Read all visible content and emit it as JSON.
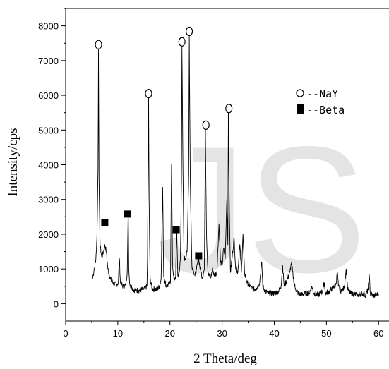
{
  "chart_data": {
    "type": "line",
    "xlabel": "2 Theta/deg",
    "ylabel": "Intensity/cps",
    "xlim": [
      0,
      62
    ],
    "ylim": [
      -500,
      8500
    ],
    "x_ticks": [
      0,
      10,
      20,
      30,
      40,
      50,
      60
    ],
    "y_ticks": [
      0,
      1000,
      2000,
      3000,
      4000,
      5000,
      6000,
      7000,
      8000
    ],
    "grid": false,
    "legend_position": "top-right",
    "watermark": "JS",
    "series": [
      {
        "type": "line",
        "color": "#000000",
        "points": [
          [
            5.0,
            700
          ],
          [
            5.4,
            900
          ],
          [
            5.8,
            1300
          ],
          [
            6.0,
            1900
          ],
          [
            6.2,
            3800
          ],
          [
            6.3,
            7350
          ],
          [
            6.4,
            3500
          ],
          [
            6.6,
            1700
          ],
          [
            6.9,
            1350
          ],
          [
            7.2,
            1450
          ],
          [
            7.5,
            1700
          ],
          [
            7.8,
            1500
          ],
          [
            8.1,
            1000
          ],
          [
            8.6,
            700
          ],
          [
            9.3,
            560
          ],
          [
            9.8,
            560
          ],
          [
            10.1,
            600
          ],
          [
            10.3,
            1300
          ],
          [
            10.5,
            600
          ],
          [
            11.0,
            500
          ],
          [
            11.5,
            520
          ],
          [
            11.8,
            900
          ],
          [
            12.0,
            2700
          ],
          [
            12.1,
            1000
          ],
          [
            12.3,
            560
          ],
          [
            13.0,
            400
          ],
          [
            14.0,
            380
          ],
          [
            15.0,
            420
          ],
          [
            15.6,
            500
          ],
          [
            15.7,
            1300
          ],
          [
            15.8,
            3300
          ],
          [
            15.9,
            5950
          ],
          [
            16.0,
            3000
          ],
          [
            16.2,
            700
          ],
          [
            16.6,
            420
          ],
          [
            17.2,
            420
          ],
          [
            17.5,
            400
          ],
          [
            18.0,
            500
          ],
          [
            18.3,
            700
          ],
          [
            18.6,
            3350
          ],
          [
            18.8,
            800
          ],
          [
            19.3,
            500
          ],
          [
            19.8,
            550
          ],
          [
            20.1,
            650
          ],
          [
            20.3,
            4000
          ],
          [
            20.5,
            1100
          ],
          [
            20.8,
            650
          ],
          [
            21.1,
            800
          ],
          [
            21.3,
            2200
          ],
          [
            21.5,
            800
          ],
          [
            21.8,
            900
          ],
          [
            22.0,
            1300
          ],
          [
            22.2,
            3500
          ],
          [
            22.3,
            7400
          ],
          [
            22.5,
            3800
          ],
          [
            22.7,
            1300
          ],
          [
            23.0,
            1300
          ],
          [
            23.3,
            1500
          ],
          [
            23.6,
            3800
          ],
          [
            23.7,
            7700
          ],
          [
            23.9,
            3500
          ],
          [
            24.2,
            1100
          ],
          [
            24.8,
            800
          ],
          [
            25.1,
            1000
          ],
          [
            25.5,
            1300
          ],
          [
            25.8,
            1000
          ],
          [
            26.2,
            750
          ],
          [
            26.6,
            1000
          ],
          [
            26.8,
            5000
          ],
          [
            27.0,
            2000
          ],
          [
            27.3,
            850
          ],
          [
            27.8,
            750
          ],
          [
            28.2,
            1000
          ],
          [
            28.5,
            800
          ],
          [
            29.0,
            900
          ],
          [
            29.4,
            2300
          ],
          [
            29.7,
            1200
          ],
          [
            30.0,
            1100
          ],
          [
            30.3,
            1600
          ],
          [
            30.6,
            1300
          ],
          [
            30.9,
            3000
          ],
          [
            31.1,
            1700
          ],
          [
            31.2,
            5500
          ],
          [
            31.4,
            2500
          ],
          [
            31.6,
            900
          ],
          [
            31.9,
            1300
          ],
          [
            32.3,
            1900
          ],
          [
            32.6,
            1000
          ],
          [
            33.0,
            900
          ],
          [
            33.4,
            1700
          ],
          [
            33.7,
            900
          ],
          [
            34.0,
            2000
          ],
          [
            34.3,
            900
          ],
          [
            34.8,
            600
          ],
          [
            35.4,
            500
          ],
          [
            36.0,
            400
          ],
          [
            36.6,
            450
          ],
          [
            37.2,
            600
          ],
          [
            37.6,
            1200
          ],
          [
            37.8,
            500
          ],
          [
            38.3,
            350
          ],
          [
            39.0,
            300
          ],
          [
            40.0,
            300
          ],
          [
            40.8,
            350
          ],
          [
            41.3,
            500
          ],
          [
            41.6,
            1100
          ],
          [
            41.9,
            500
          ],
          [
            42.5,
            700
          ],
          [
            43.0,
            900
          ],
          [
            43.3,
            1200
          ],
          [
            43.6,
            800
          ],
          [
            44.0,
            450
          ],
          [
            44.6,
            300
          ],
          [
            45.2,
            250
          ],
          [
            46.0,
            300
          ],
          [
            46.7,
            300
          ],
          [
            47.2,
            500
          ],
          [
            47.6,
            300
          ],
          [
            48.4,
            250
          ],
          [
            49.2,
            350
          ],
          [
            49.6,
            600
          ],
          [
            49.8,
            300
          ],
          [
            50.5,
            350
          ],
          [
            51.2,
            450
          ],
          [
            51.8,
            550
          ],
          [
            52.1,
            900
          ],
          [
            52.3,
            500
          ],
          [
            52.8,
            350
          ],
          [
            53.4,
            450
          ],
          [
            53.8,
            1000
          ],
          [
            54.1,
            400
          ],
          [
            54.6,
            300
          ],
          [
            55.3,
            280
          ],
          [
            56.0,
            250
          ],
          [
            56.8,
            300
          ],
          [
            57.5,
            250
          ],
          [
            58.0,
            400
          ],
          [
            58.2,
            850
          ],
          [
            58.4,
            300
          ],
          [
            59.0,
            230
          ],
          [
            60.0,
            280
          ]
        ]
      }
    ],
    "markers": {
      "NaY": {
        "shape": "open-circle",
        "points": [
          [
            6.3,
            7460
          ],
          [
            15.9,
            6050
          ],
          [
            22.3,
            7540
          ],
          [
            23.7,
            7840
          ],
          [
            26.9,
            5140
          ],
          [
            31.3,
            5620
          ]
        ]
      },
      "Beta": {
        "shape": "filled-square",
        "points": [
          [
            7.5,
            2340
          ],
          [
            11.9,
            2580
          ],
          [
            21.2,
            2130
          ],
          [
            25.5,
            1380
          ]
        ]
      }
    },
    "legend": [
      {
        "label": "--NaY",
        "marker": "open-circle"
      },
      {
        "label": "--Beta",
        "marker": "filled-square"
      }
    ]
  }
}
